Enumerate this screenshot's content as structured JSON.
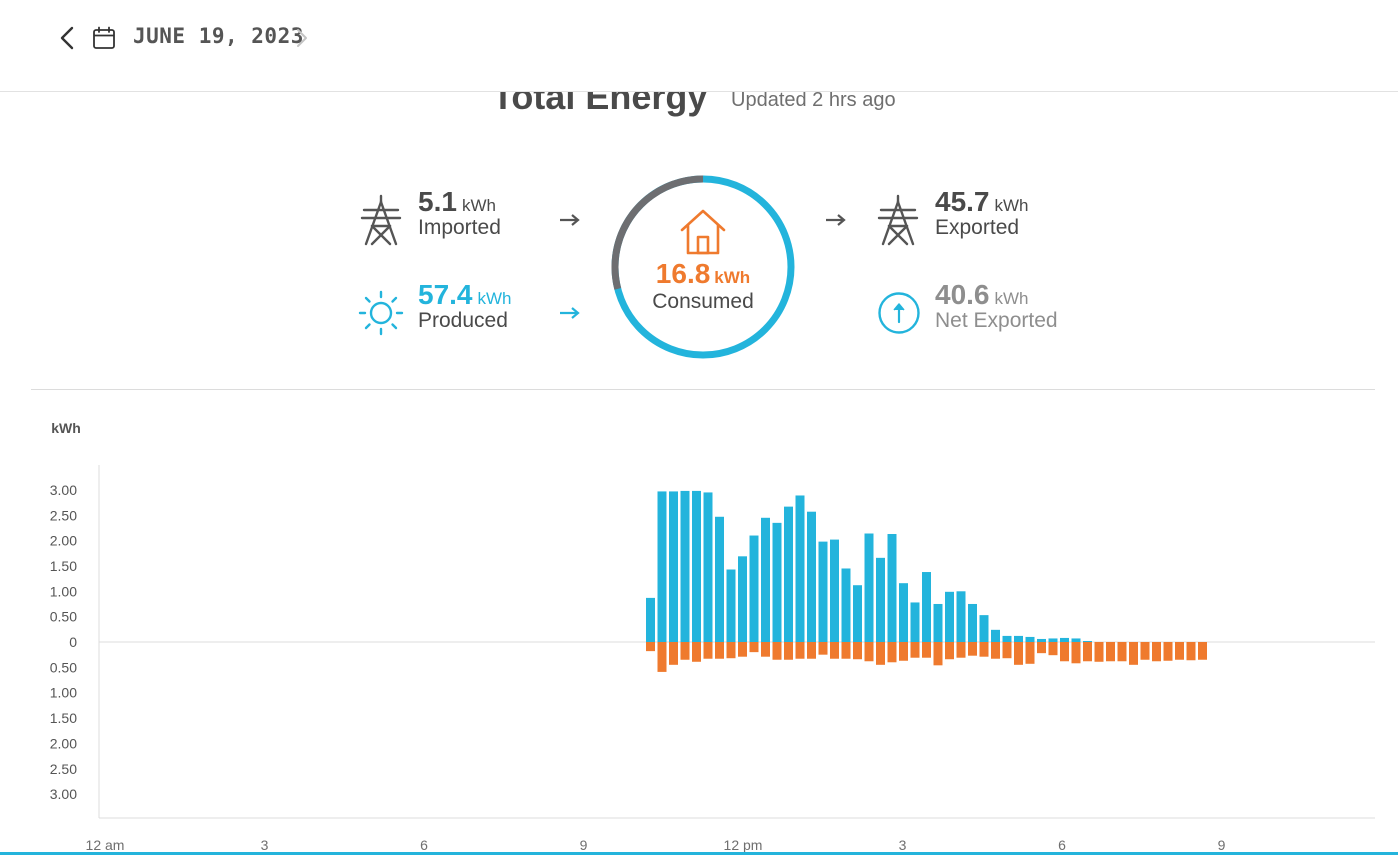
{
  "header": {
    "date": "JUNE 19, 2023",
    "back_icon": "chevron-left-icon",
    "calendar_icon": "calendar-icon",
    "forward_icon": "chevron-right-icon"
  },
  "summary": {
    "title": "Total Energy",
    "updated": "Updated 2 hrs ago",
    "imported": {
      "value": "5.1",
      "unit": "kWh",
      "label": "Imported",
      "icon": "power-tower-icon"
    },
    "produced": {
      "value": "57.4",
      "unit": "kWh",
      "label": "Produced",
      "icon": "sun-icon"
    },
    "consumed": {
      "value": "16.8",
      "unit": "kWh",
      "label": "Consumed",
      "icon": "house-icon",
      "ring_consumed_fraction": 0.29
    },
    "exported": {
      "value": "45.7",
      "unit": "kWh",
      "label": "Exported",
      "icon": "power-tower-icon"
    },
    "net_exported": {
      "value": "40.6",
      "unit": "kWh",
      "label": "Net Exported",
      "icon": "up-arrow-circle-icon"
    }
  },
  "colors": {
    "produced": "#23b4dc",
    "consumed": "#ef7a2e",
    "grid": "#6d6e71",
    "text": "#4a4a4a"
  },
  "chart_data": {
    "type": "bar",
    "ylabel": "kWh",
    "y_tick_labels": [
      "3.00",
      "2.50",
      "2.00",
      "1.50",
      "1.00",
      "0.50",
      "0",
      "0.50",
      "1.00",
      "1.50",
      "2.00",
      "2.50",
      "3.00"
    ],
    "ylim": [
      -3.5,
      3.5
    ],
    "x_tick_labels": [
      "12 am",
      "3",
      "6",
      "9",
      "12 pm",
      "3",
      "6",
      "9"
    ],
    "interval_minutes": 15,
    "first_bar_time": "10:15 am",
    "series": [
      {
        "name": "produced",
        "values": [
          0.87,
          2.97,
          2.97,
          2.98,
          2.98,
          2.95,
          2.47,
          1.43,
          1.69,
          2.1,
          2.45,
          2.35,
          2.67,
          2.89,
          2.57,
          1.98,
          2.02,
          1.45,
          1.12,
          2.14,
          1.66,
          2.13,
          1.16,
          0.78,
          1.38,
          0.75,
          0.99,
          1.0,
          0.75,
          0.53,
          0.24,
          0.12,
          0.12,
          0.1,
          0.06,
          0.07,
          0.08,
          0.07,
          0.02,
          0,
          0,
          0,
          0,
          0,
          0,
          0,
          0,
          0,
          0
        ]
      },
      {
        "name": "consumed",
        "values": [
          -0.18,
          -0.59,
          -0.45,
          -0.35,
          -0.39,
          -0.33,
          -0.33,
          -0.32,
          -0.29,
          -0.2,
          -0.29,
          -0.35,
          -0.35,
          -0.33,
          -0.33,
          -0.25,
          -0.33,
          -0.33,
          -0.34,
          -0.38,
          -0.45,
          -0.4,
          -0.37,
          -0.31,
          -0.31,
          -0.46,
          -0.34,
          -0.31,
          -0.27,
          -0.29,
          -0.33,
          -0.32,
          -0.45,
          -0.43,
          -0.22,
          -0.26,
          -0.38,
          -0.42,
          -0.38,
          -0.39,
          -0.38,
          -0.38,
          -0.45,
          -0.35,
          -0.38,
          -0.37,
          -0.35,
          -0.36,
          -0.35
        ]
      }
    ]
  }
}
